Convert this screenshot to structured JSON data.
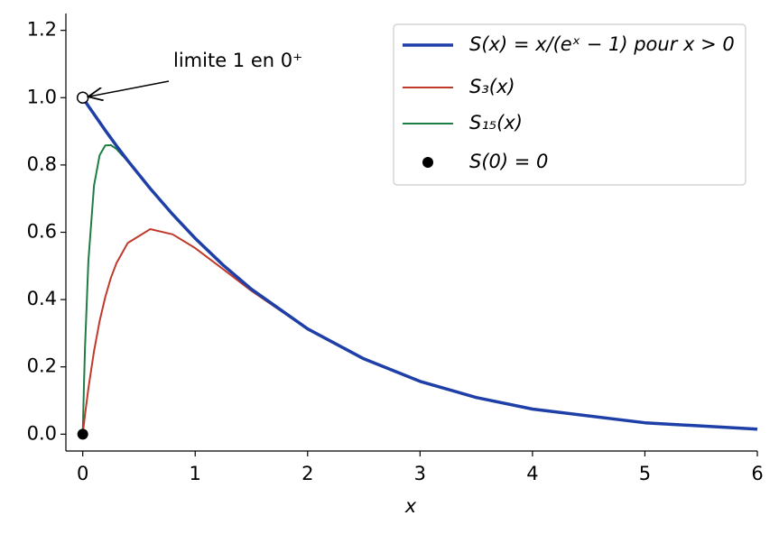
{
  "chart_data": {
    "type": "line",
    "x": [
      0,
      0.01,
      0.02,
      0.05,
      0.1,
      0.15,
      0.2,
      0.25,
      0.3,
      0.4,
      0.6,
      0.8,
      1,
      1.25,
      1.5,
      2,
      2.5,
      3,
      3.5,
      4,
      5,
      6
    ],
    "series": [
      {
        "name": "S(x) = x/(eˣ − 1) pour x > 0",
        "color": "#1f3fa8",
        "width": 3.5,
        "values": [
          null,
          0.995,
          0.99,
          0.975,
          0.951,
          0.927,
          0.903,
          0.88,
          0.857,
          0.813,
          0.73,
          0.653,
          0.582,
          0.502,
          0.431,
          0.313,
          0.224,
          0.157,
          0.109,
          0.0746,
          0.0339,
          0.0149
        ]
      },
      {
        "name": "S₃(x)",
        "color": "#c0392b",
        "width": 2,
        "values": [
          0,
          0.0294,
          0.0576,
          0.1358,
          0.2465,
          0.336,
          0.4074,
          0.4645,
          0.5085,
          0.5681,
          0.6093,
          0.5938,
          0.553,
          0.49,
          0.426,
          0.312,
          0.224,
          0.157,
          0.109,
          0.0746,
          0.0339,
          0.0149
        ]
      },
      {
        "name": "S₁₅(x)",
        "color": "#1e7d45",
        "width": 2,
        "values": [
          0,
          0.1386,
          0.2566,
          0.5144,
          0.7388,
          0.829,
          0.858,
          0.859,
          0.8475,
          0.811,
          0.73,
          0.653,
          0.582,
          0.502,
          0.431,
          0.313,
          0.224,
          0.157,
          0.109,
          0.0746,
          0.0339,
          0.0149
        ]
      }
    ],
    "points": {
      "name": "S(0) = 0",
      "color": "#000000",
      "x": [
        0
      ],
      "values": [
        0
      ]
    },
    "annotation": {
      "text": "limite 1 en 0⁺",
      "x": 0,
      "y": 1
    },
    "x_label": "x",
    "xlim": [
      -0.15,
      6
    ],
    "ylim": [
      -0.05,
      1.25
    ],
    "xticks": [
      0,
      1,
      2,
      3,
      4,
      5,
      6
    ],
    "yticks": [
      {
        "value": 0,
        "label": "0.0"
      },
      {
        "value": 0.2,
        "label": "0.2"
      },
      {
        "value": 0.4,
        "label": "0.4"
      },
      {
        "value": 0.6,
        "label": "0.6"
      },
      {
        "value": 0.8,
        "label": "0.8"
      },
      {
        "value": 1,
        "label": "1.0"
      },
      {
        "value": 1.2,
        "label": "1.2"
      }
    ],
    "legend": "upper right"
  }
}
